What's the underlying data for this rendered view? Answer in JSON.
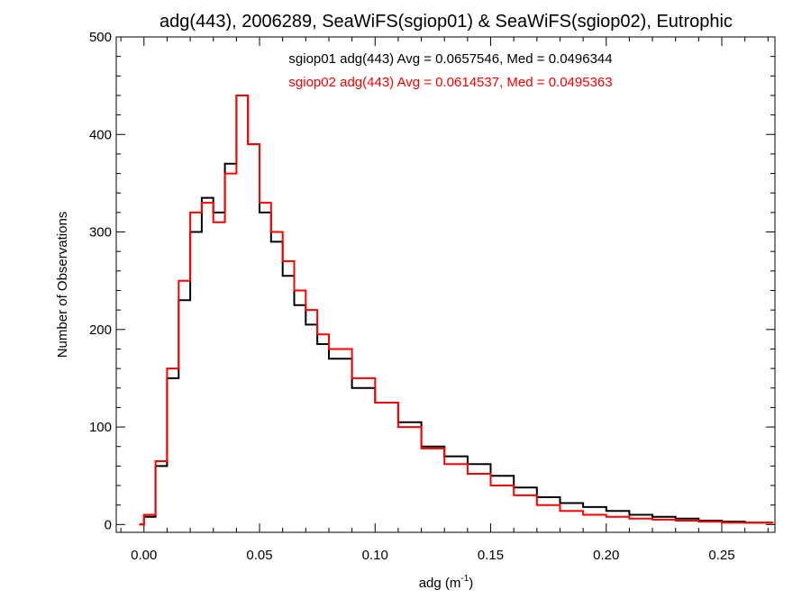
{
  "chart_data": {
    "type": "histogram",
    "title": "adg(443), 2006289, SeaWiFS(sgiop01) & SeaWiFS(sgiop02), Eutrophic",
    "xlabel": "adg (m",
    "xlabel_sup": "-1",
    "xlabel_close": ")",
    "ylabel": "Number of Observations",
    "xlim": [
      -0.012,
      0.273
    ],
    "ylim": [
      -8,
      500
    ],
    "x_ticks": [
      0.0,
      0.05,
      0.1,
      0.15,
      0.2,
      0.25
    ],
    "x_tick_labels": [
      "0.00",
      "0.05",
      "0.10",
      "0.15",
      "0.20",
      "0.25"
    ],
    "y_ticks": [
      0,
      100,
      200,
      300,
      400,
      500
    ],
    "y_tick_labels": [
      "0",
      "100",
      "200",
      "300",
      "400",
      "500"
    ],
    "grid": false,
    "legend_position": "top-right",
    "series": [
      {
        "name": "sgiop01",
        "color": "#000000",
        "label": "sgiop01 adg(443) Avg = 0.0657546, Med = 0.0496344",
        "points": [
          [
            -0.002,
            0
          ],
          [
            0.0,
            8
          ],
          [
            0.005,
            60
          ],
          [
            0.01,
            150
          ],
          [
            0.015,
            230
          ],
          [
            0.02,
            300
          ],
          [
            0.025,
            335
          ],
          [
            0.03,
            320
          ],
          [
            0.035,
            370
          ],
          [
            0.04,
            440
          ],
          [
            0.045,
            390
          ],
          [
            0.05,
            320
          ],
          [
            0.055,
            290
          ],
          [
            0.06,
            255
          ],
          [
            0.065,
            225
          ],
          [
            0.07,
            205
          ],
          [
            0.075,
            185
          ],
          [
            0.08,
            170
          ],
          [
            0.09,
            140
          ],
          [
            0.1,
            125
          ],
          [
            0.11,
            105
          ],
          [
            0.12,
            80
          ],
          [
            0.13,
            70
          ],
          [
            0.14,
            62
          ],
          [
            0.15,
            50
          ],
          [
            0.16,
            38
          ],
          [
            0.17,
            28
          ],
          [
            0.18,
            22
          ],
          [
            0.19,
            18
          ],
          [
            0.2,
            14
          ],
          [
            0.21,
            10
          ],
          [
            0.22,
            8
          ],
          [
            0.23,
            6
          ],
          [
            0.24,
            4
          ],
          [
            0.25,
            3
          ],
          [
            0.26,
            2
          ],
          [
            0.272,
            2
          ]
        ]
      },
      {
        "name": "sgiop02",
        "color": "#ff0000",
        "label": "sgiop02 adg(443) Avg = 0.0614537, Med = 0.0495363",
        "points": [
          [
            -0.002,
            0
          ],
          [
            0.0,
            10
          ],
          [
            0.005,
            65
          ],
          [
            0.01,
            160
          ],
          [
            0.015,
            250
          ],
          [
            0.02,
            320
          ],
          [
            0.025,
            330
          ],
          [
            0.03,
            310
          ],
          [
            0.035,
            360
          ],
          [
            0.04,
            440
          ],
          [
            0.045,
            390
          ],
          [
            0.05,
            330
          ],
          [
            0.055,
            300
          ],
          [
            0.06,
            270
          ],
          [
            0.065,
            240
          ],
          [
            0.07,
            220
          ],
          [
            0.075,
            195
          ],
          [
            0.08,
            180
          ],
          [
            0.09,
            150
          ],
          [
            0.1,
            125
          ],
          [
            0.11,
            100
          ],
          [
            0.12,
            78
          ],
          [
            0.13,
            62
          ],
          [
            0.14,
            52
          ],
          [
            0.15,
            40
          ],
          [
            0.16,
            30
          ],
          [
            0.17,
            20
          ],
          [
            0.18,
            14
          ],
          [
            0.19,
            10
          ],
          [
            0.2,
            8
          ],
          [
            0.21,
            6
          ],
          [
            0.22,
            5
          ],
          [
            0.23,
            4
          ],
          [
            0.24,
            3
          ],
          [
            0.25,
            2
          ],
          [
            0.26,
            2
          ],
          [
            0.272,
            1
          ]
        ]
      }
    ]
  }
}
